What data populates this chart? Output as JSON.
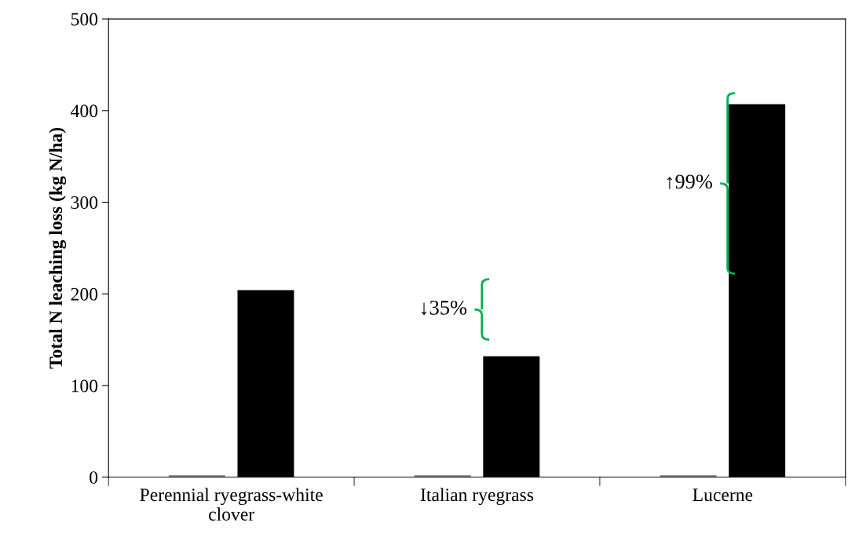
{
  "chart_data": {
    "type": "bar",
    "ylabel": "Total N leaching loss (kg N/ha)",
    "categories": [
      "Perennial ryegrass-white\nclover",
      "Italian ryegrass",
      "Lucerne"
    ],
    "series": [
      {
        "color": "#808080",
        "values": [
          2,
          2,
          2
        ]
      },
      {
        "color": "#000000",
        "values": [
          204,
          132,
          407
        ]
      }
    ],
    "ylim": [
      0,
      500
    ],
    "yticks": [
      0,
      100,
      200,
      300,
      400,
      500
    ],
    "grid": false,
    "legend": false,
    "annotations": [
      "↓35%",
      "↑99%"
    ]
  }
}
